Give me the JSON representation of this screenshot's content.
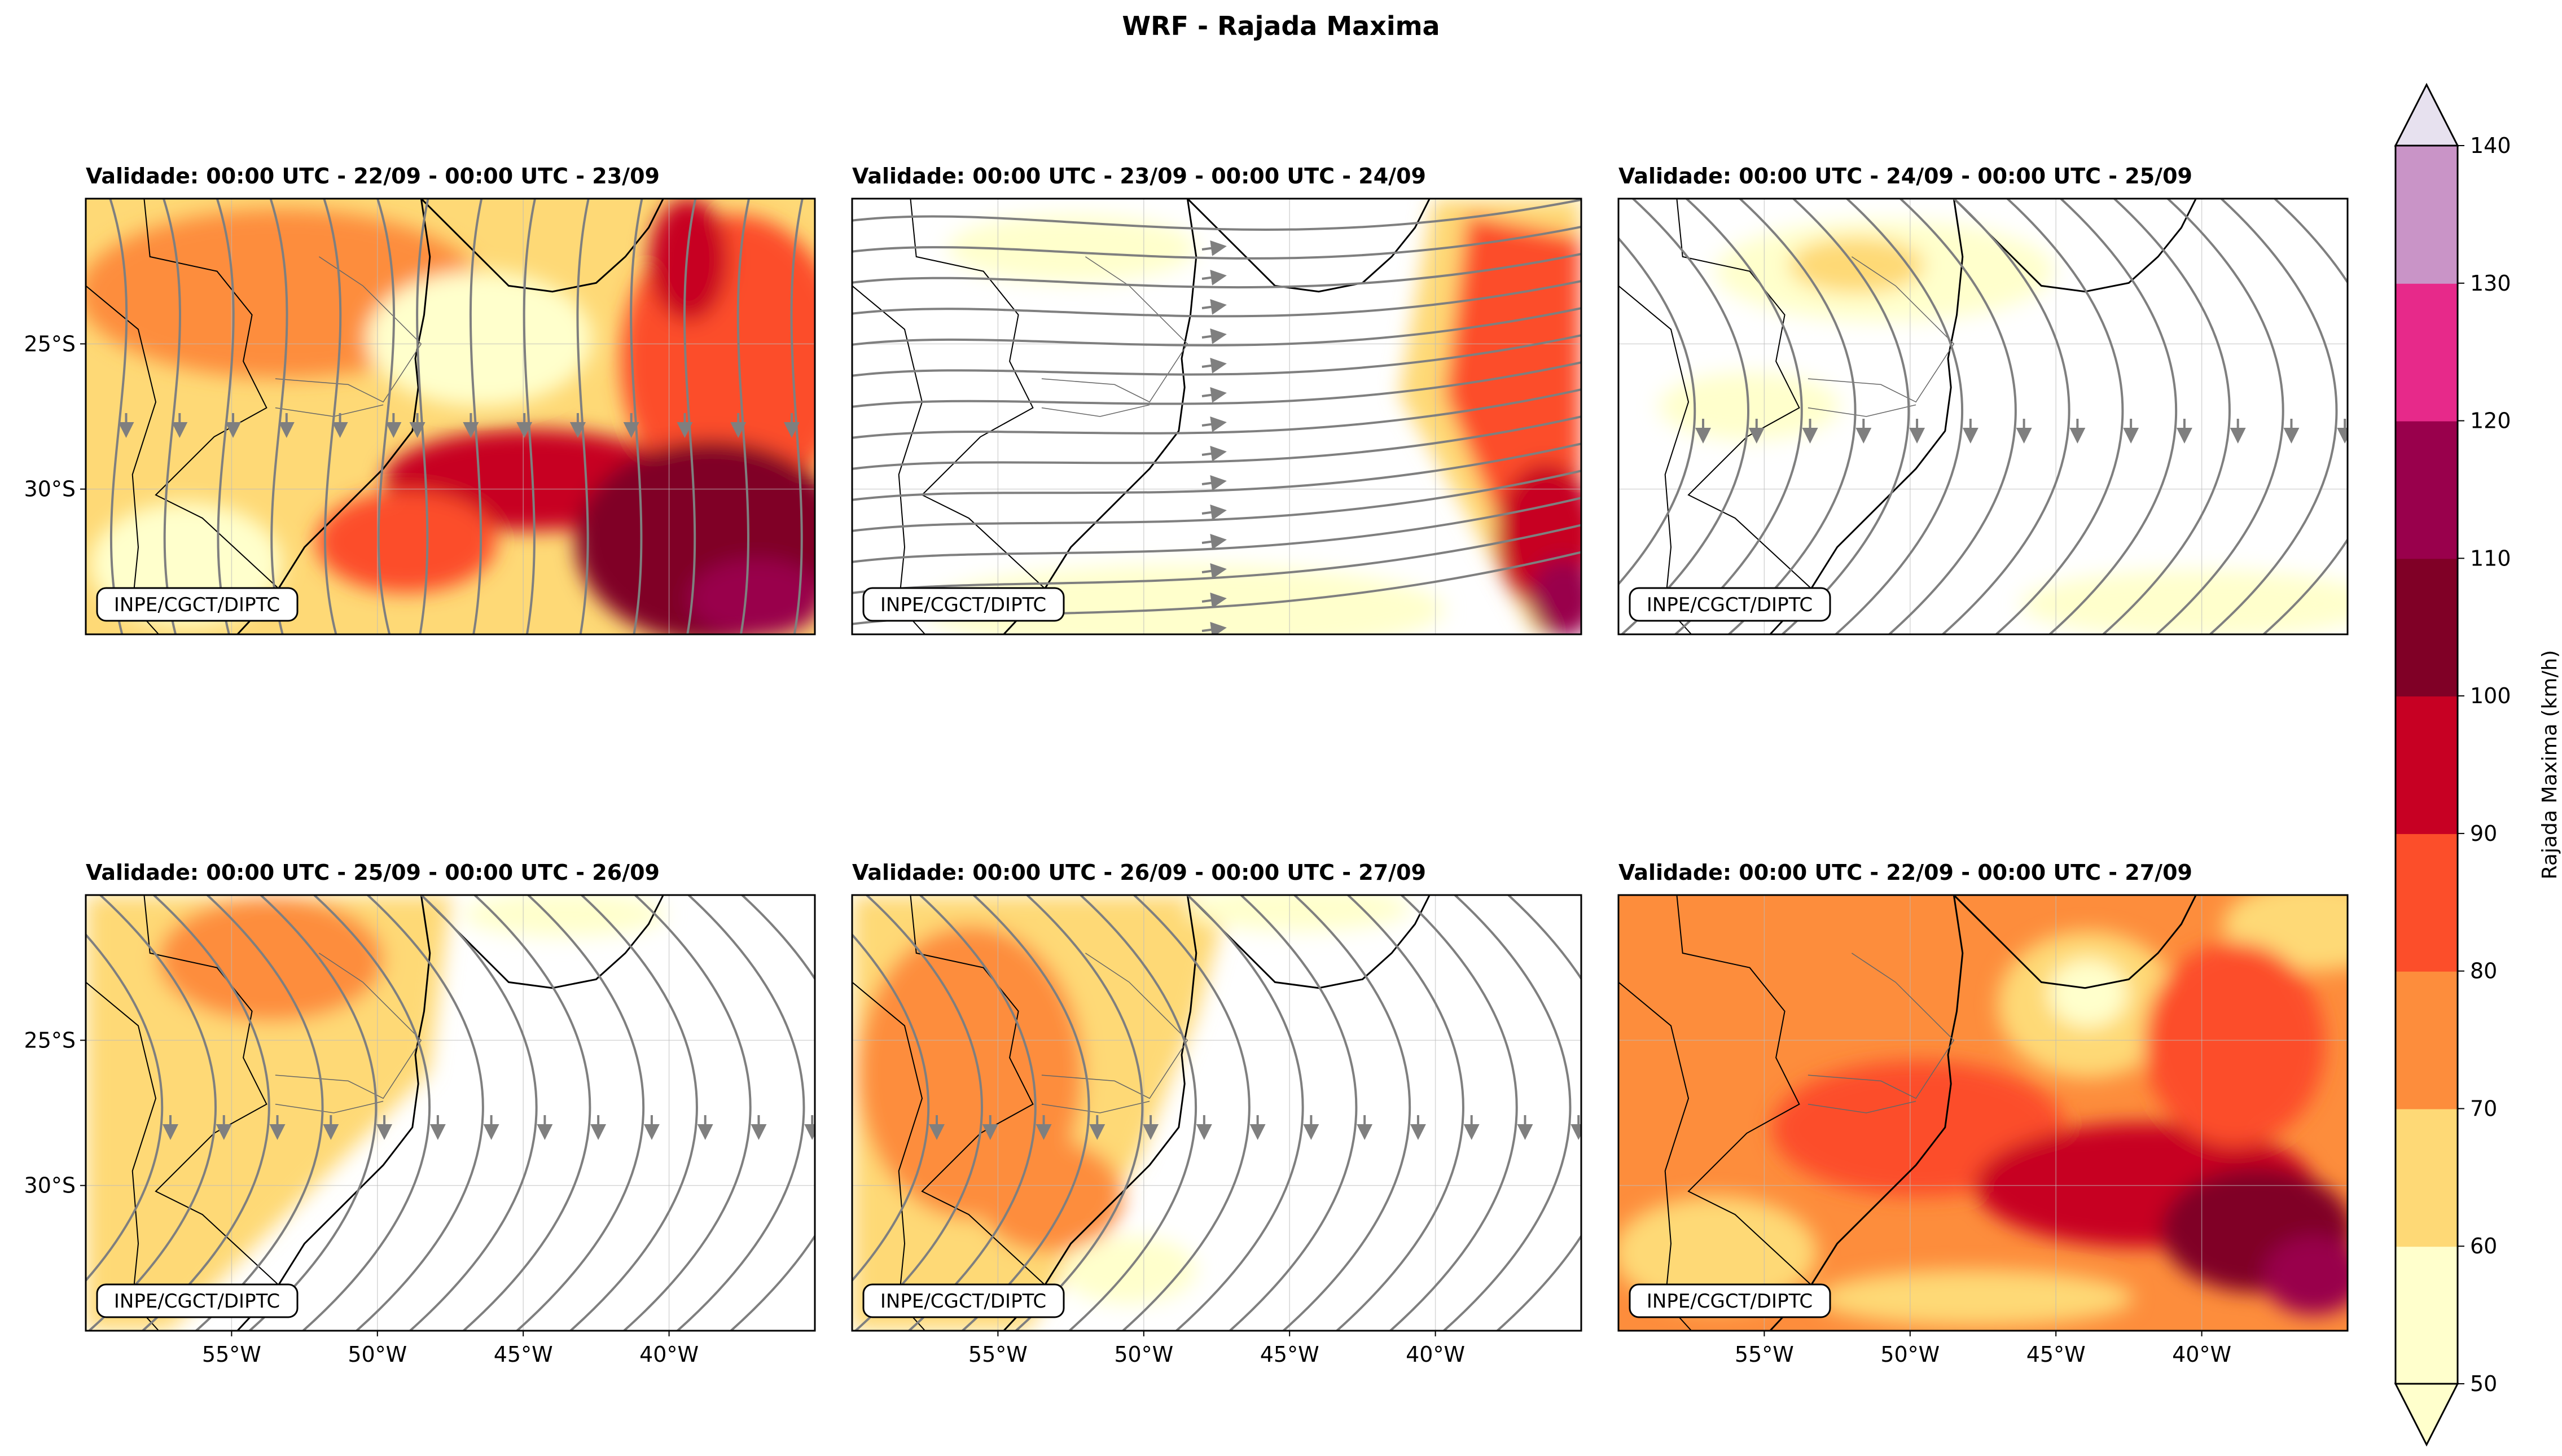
{
  "figure": {
    "title": "WRF - Rajada Maxima"
  },
  "panels": [
    {
      "title": "Validade: 00:00 UTC - 22/09 - 00:00 UTC - 23/09",
      "credit": "INPE/CGCT/DIPTC",
      "intensity": "high"
    },
    {
      "title": "Validade: 00:00 UTC - 23/09 - 00:00 UTC - 24/09",
      "credit": "INPE/CGCT/DIPTC",
      "intensity": "east"
    },
    {
      "title": "Validade: 00:00 UTC - 24/09 - 00:00 UTC - 25/09",
      "credit": "INPE/CGCT/DIPTC",
      "intensity": "low"
    },
    {
      "title": "Validade: 00:00 UTC - 25/09 - 00:00 UTC - 26/09",
      "credit": "INPE/CGCT/DIPTC",
      "intensity": "west"
    },
    {
      "title": "Validade: 00:00 UTC - 26/09 - 00:00 UTC - 27/09",
      "credit": "INPE/CGCT/DIPTC",
      "intensity": "west2"
    },
    {
      "title": "Validade: 00:00 UTC - 22/09 - 00:00 UTC - 27/09",
      "credit": "INPE/CGCT/DIPTC",
      "intensity": "max"
    }
  ],
  "axes": {
    "lat_ticks": [
      "25°S",
      "30°S"
    ],
    "lon_ticks": [
      "55°W",
      "50°W",
      "45°W",
      "40°W"
    ],
    "lon_range": [
      -60,
      -35
    ],
    "lat_range": [
      -35,
      -20
    ]
  },
  "colorbar": {
    "label": "Rajada Maxima (km/h)",
    "ticks": [
      50,
      60,
      70,
      80,
      90,
      100,
      110,
      120,
      130,
      140
    ],
    "colors": [
      "#ffffcc",
      "#fed976",
      "#fd8d3c",
      "#fc4e2a",
      "#c70023",
      "#800026",
      "#99004c",
      "#e7298a",
      "#c994c7",
      "#e7e1ef"
    ],
    "extend": "both"
  },
  "streamline_color": "#7f7f7f"
}
